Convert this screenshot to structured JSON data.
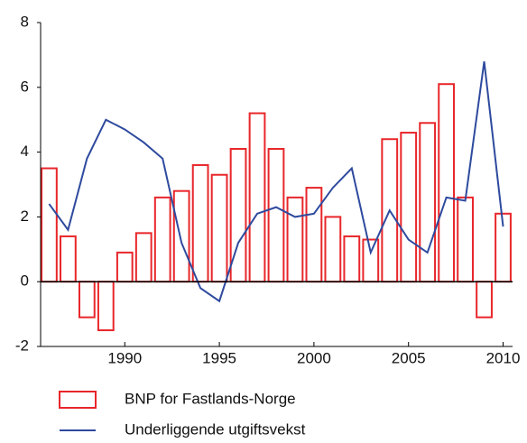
{
  "chart_data": {
    "type": "bar_line",
    "x": [
      1986,
      1987,
      1988,
      1989,
      1990,
      1991,
      1992,
      1993,
      1994,
      1995,
      1996,
      1997,
      1998,
      1999,
      2000,
      2001,
      2002,
      2003,
      2004,
      2005,
      2006,
      2007,
      2008,
      2009,
      2010
    ],
    "series": [
      {
        "name": "BNP for Fastlands-Norge",
        "type": "bar",
        "color": "#e8262a",
        "values": [
          3.5,
          1.4,
          -1.1,
          -1.5,
          0.9,
          1.5,
          2.6,
          2.8,
          3.6,
          3.3,
          4.1,
          5.2,
          4.1,
          2.6,
          2.9,
          2.0,
          1.4,
          1.3,
          4.4,
          4.6,
          4.9,
          6.1,
          2.6,
          -1.1,
          2.1
        ]
      },
      {
        "name": "Underliggende utgiftsvekst",
        "type": "line",
        "color": "#2e4a9e",
        "values": [
          2.4,
          1.6,
          3.8,
          5.0,
          4.7,
          4.3,
          3.8,
          1.2,
          -0.2,
          -0.6,
          1.2,
          2.1,
          2.3,
          2.0,
          2.1,
          2.9,
          3.5,
          0.9,
          2.2,
          1.3,
          0.9,
          2.6,
          2.5,
          6.8,
          1.7
        ]
      }
    ],
    "xlim": [
      1985.55,
      2010.5
    ],
    "xticks": [
      1990,
      1995,
      2000,
      2005,
      2010
    ],
    "ylim": [
      -2,
      8
    ],
    "yticks": [
      -2,
      0,
      2,
      4,
      6,
      8
    ],
    "legend": "bottom"
  }
}
